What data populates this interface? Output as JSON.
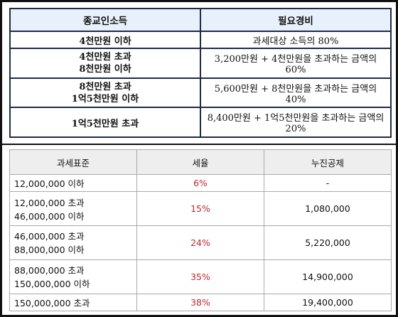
{
  "income_table": {
    "headers": [
      "종교인소득",
      "필요경비"
    ],
    "rows": [
      {
        "bracket": [
          "4천만원 이하"
        ],
        "expense": "과세대상 소득의 80%"
      },
      {
        "bracket": [
          "4천만원 초과",
          "8천만원 이하"
        ],
        "expense": "3,200만원 + 4천만원을 초과하는 금액의 60%"
      },
      {
        "bracket": [
          "8천만원 초과",
          "1억5천만원 이하"
        ],
        "expense": "5,600만원 + 8천만원을 초과하는 금액의 40%"
      },
      {
        "bracket": [
          "1억5천만원 초과"
        ],
        "expense": "8,400만원 + 1억5천만원을 초과하는 금액의 20%"
      }
    ]
  },
  "tax_table": {
    "headers": [
      "과세표준",
      "세율",
      "누진공제"
    ],
    "rows": [
      {
        "standard": "12,000,000 이하",
        "rate": "6%",
        "deduction": "-"
      },
      {
        "standard": "12,000,000 초과 46,000,000 이하",
        "rate": "15%",
        "deduction": "1,080,000"
      },
      {
        "standard": "46,000,000 초과 88,000,000 이하",
        "rate": "24%",
        "deduction": "5,220,000"
      },
      {
        "standard": "88,000,000 초과 150,000,000 이하",
        "rate": "35%",
        "deduction": "14,900,000"
      },
      {
        "standard": "150,000,000 초과",
        "rate": "38%",
        "deduction": "19,400,000"
      }
    ]
  },
  "colors": {
    "rate_text": "#c0282d",
    "header_blue": "#e7f0fb",
    "header_gray": "#eeeeee"
  }
}
